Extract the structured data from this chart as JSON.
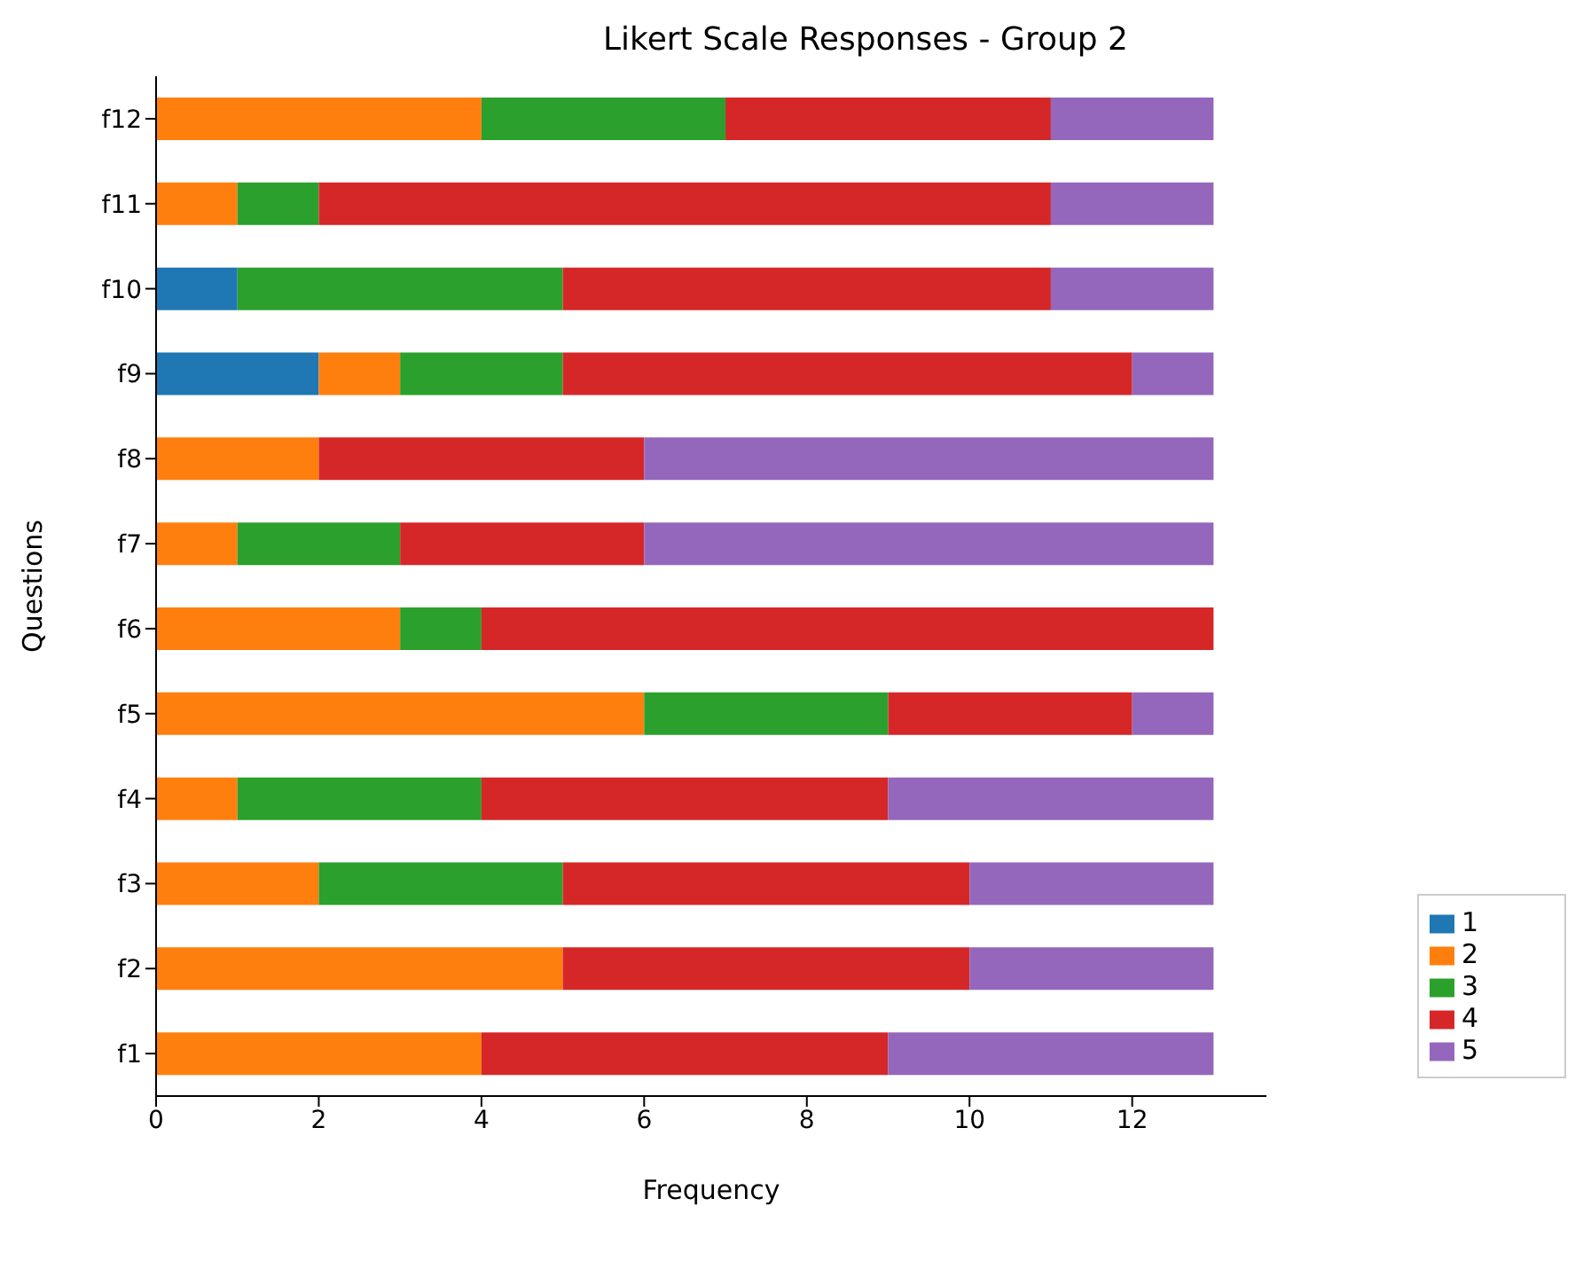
{
  "chart_data": {
    "type": "bar",
    "orientation": "horizontal",
    "stacked": true,
    "title": "Likert Scale Responses - Group 2",
    "xlabel": "Frequency",
    "ylabel": "Questions",
    "categories": [
      "f12",
      "f11",
      "f10",
      "f9",
      "f8",
      "f7",
      "f6",
      "f5",
      "f4",
      "f3",
      "f2",
      "f1"
    ],
    "series": [
      {
        "name": "1",
        "color": "#1f77b4",
        "values": [
          0,
          0,
          1,
          2,
          0,
          0,
          0,
          0,
          0,
          0,
          0,
          0
        ]
      },
      {
        "name": "2",
        "color": "#ff7f0e",
        "values": [
          4,
          1,
          0,
          1,
          2,
          1,
          3,
          6,
          1,
          2,
          5,
          4
        ]
      },
      {
        "name": "3",
        "color": "#2ca02c",
        "values": [
          3,
          1,
          4,
          2,
          0,
          2,
          1,
          3,
          3,
          3,
          0,
          0
        ]
      },
      {
        "name": "4",
        "color": "#d62728",
        "values": [
          4,
          9,
          6,
          7,
          4,
          3,
          9,
          3,
          5,
          5,
          5,
          5
        ]
      },
      {
        "name": "5",
        "color": "#9467bd",
        "values": [
          2,
          2,
          2,
          1,
          7,
          7,
          0,
          1,
          4,
          3,
          3,
          4
        ]
      }
    ],
    "xlim": [
      0,
      13.65
    ],
    "xticks": [
      0,
      2,
      4,
      6,
      8,
      10,
      12
    ],
    "grid": false,
    "legend": "bottom right"
  }
}
